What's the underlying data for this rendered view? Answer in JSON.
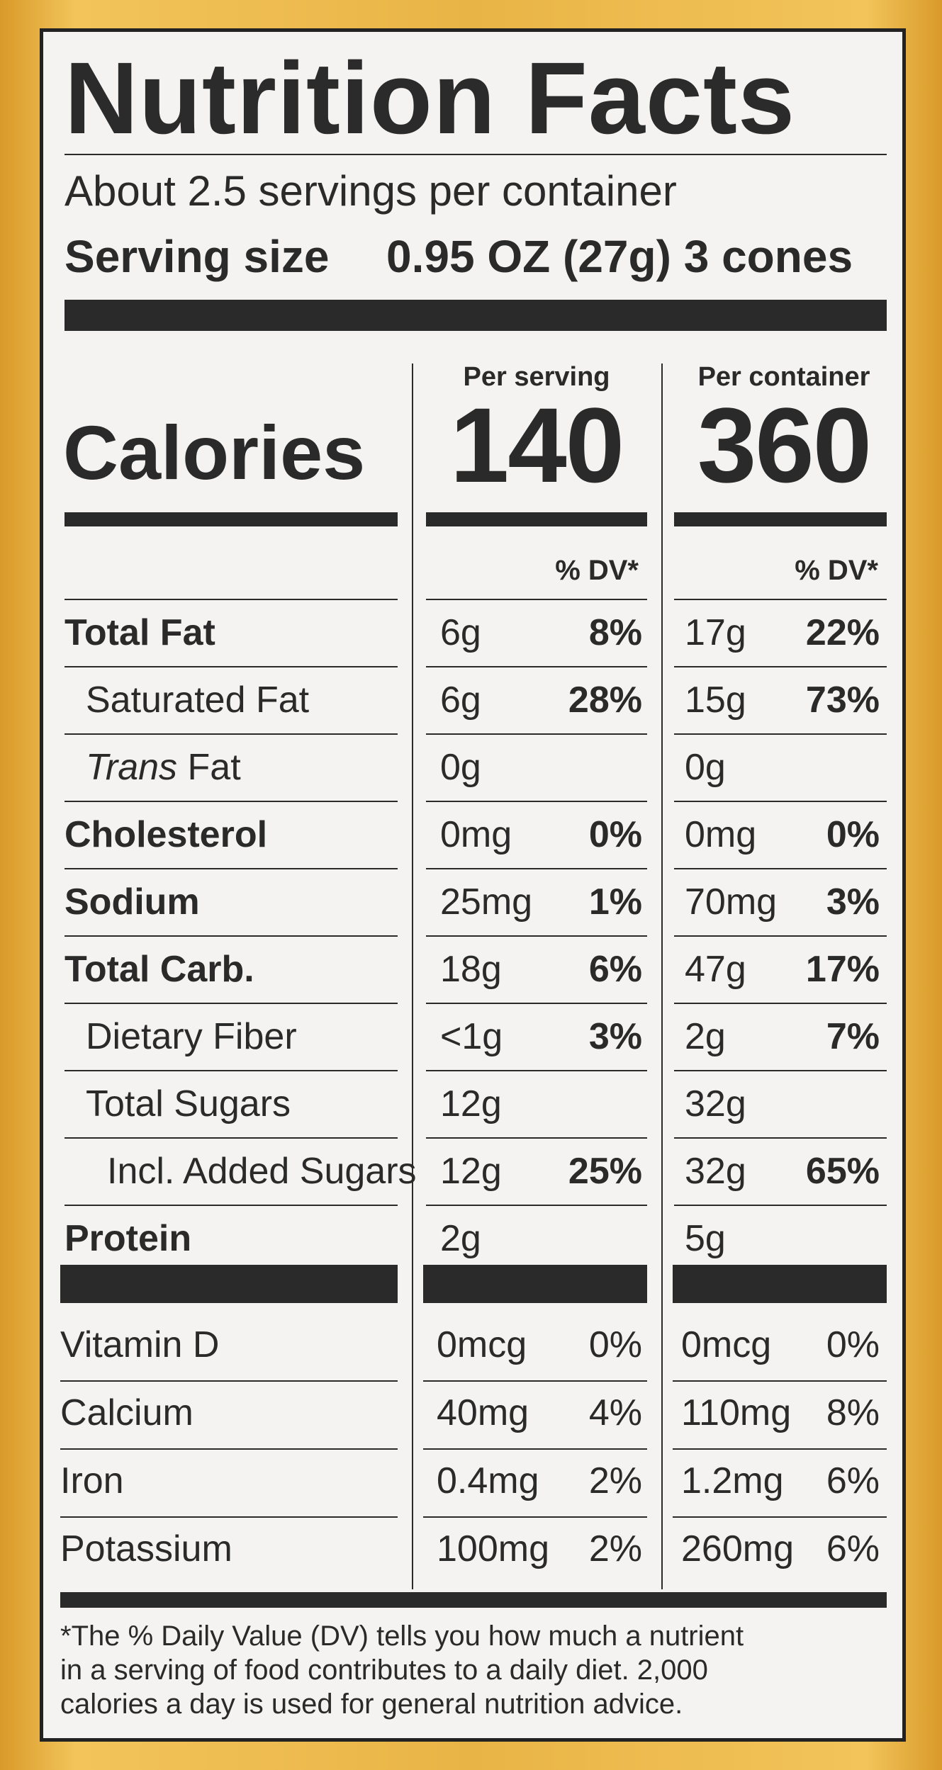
{
  "label": {
    "title": "Nutrition Facts",
    "servings_per_container": "About 2.5 servings per container",
    "serving_size_label": "Serving size",
    "serving_size_value": "0.95 OZ (27g) 3 cones",
    "calories_label": "Calories",
    "col_serving_header": "Per serving",
    "col_container_header": "Per container",
    "calories_serving": "140",
    "calories_container": "360",
    "dv_header": "% DV*",
    "nutrients": [
      {
        "name": "Total Fat",
        "bold": true,
        "indent": 0,
        "serving_amt": "6g",
        "serving_dv": "8%",
        "container_amt": "17g",
        "container_dv": "22%"
      },
      {
        "name": "Saturated Fat",
        "bold": false,
        "indent": 1,
        "serving_amt": "6g",
        "serving_dv": "28%",
        "container_amt": "15g",
        "container_dv": "73%"
      },
      {
        "name_italic": "Trans",
        "name": " Fat",
        "bold": false,
        "indent": 1,
        "serving_amt": "0g",
        "serving_dv": "",
        "container_amt": "0g",
        "container_dv": ""
      },
      {
        "name": "Cholesterol",
        "bold": true,
        "indent": 0,
        "serving_amt": "0mg",
        "serving_dv": "0%",
        "container_amt": "0mg",
        "container_dv": "0%"
      },
      {
        "name": "Sodium",
        "bold": true,
        "indent": 0,
        "serving_amt": "25mg",
        "serving_dv": "1%",
        "container_amt": "70mg",
        "container_dv": "3%"
      },
      {
        "name": "Total Carb.",
        "bold": true,
        "indent": 0,
        "serving_amt": "18g",
        "serving_dv": "6%",
        "container_amt": "47g",
        "container_dv": "17%"
      },
      {
        "name": "Dietary Fiber",
        "bold": false,
        "indent": 1,
        "serving_amt": "<1g",
        "serving_dv": "3%",
        "container_amt": "2g",
        "container_dv": "7%"
      },
      {
        "name": "Total Sugars",
        "bold": false,
        "indent": 1,
        "serving_amt": "12g",
        "serving_dv": "",
        "container_amt": "32g",
        "container_dv": ""
      },
      {
        "name": "Incl. Added Sugars",
        "bold": false,
        "indent": 2,
        "serving_amt": "12g",
        "serving_dv": "25%",
        "container_amt": "32g",
        "container_dv": "65%"
      },
      {
        "name": "Protein",
        "bold": true,
        "indent": 0,
        "serving_amt": "2g",
        "serving_dv": "",
        "container_amt": "5g",
        "container_dv": ""
      }
    ],
    "micros": [
      {
        "name": "Vitamin D",
        "serving_amt": "0mcg",
        "serving_dv": "0%",
        "container_amt": "0mcg",
        "container_dv": "0%"
      },
      {
        "name": "Calcium",
        "serving_amt": "40mg",
        "serving_dv": "4%",
        "container_amt": "110mg",
        "container_dv": "8%"
      },
      {
        "name": "Iron",
        "serving_amt": "0.4mg",
        "serving_dv": "2%",
        "container_amt": "1.2mg",
        "container_dv": "6%"
      },
      {
        "name": "Potassium",
        "serving_amt": "100mg",
        "serving_dv": "2%",
        "container_amt": "260mg",
        "container_dv": "6%"
      }
    ],
    "footnote": "*The % Daily Value (DV) tells you how much a nutrient\nin a serving of food contributes to a daily diet. 2,000\ncalories a day is used for general nutrition advice."
  }
}
